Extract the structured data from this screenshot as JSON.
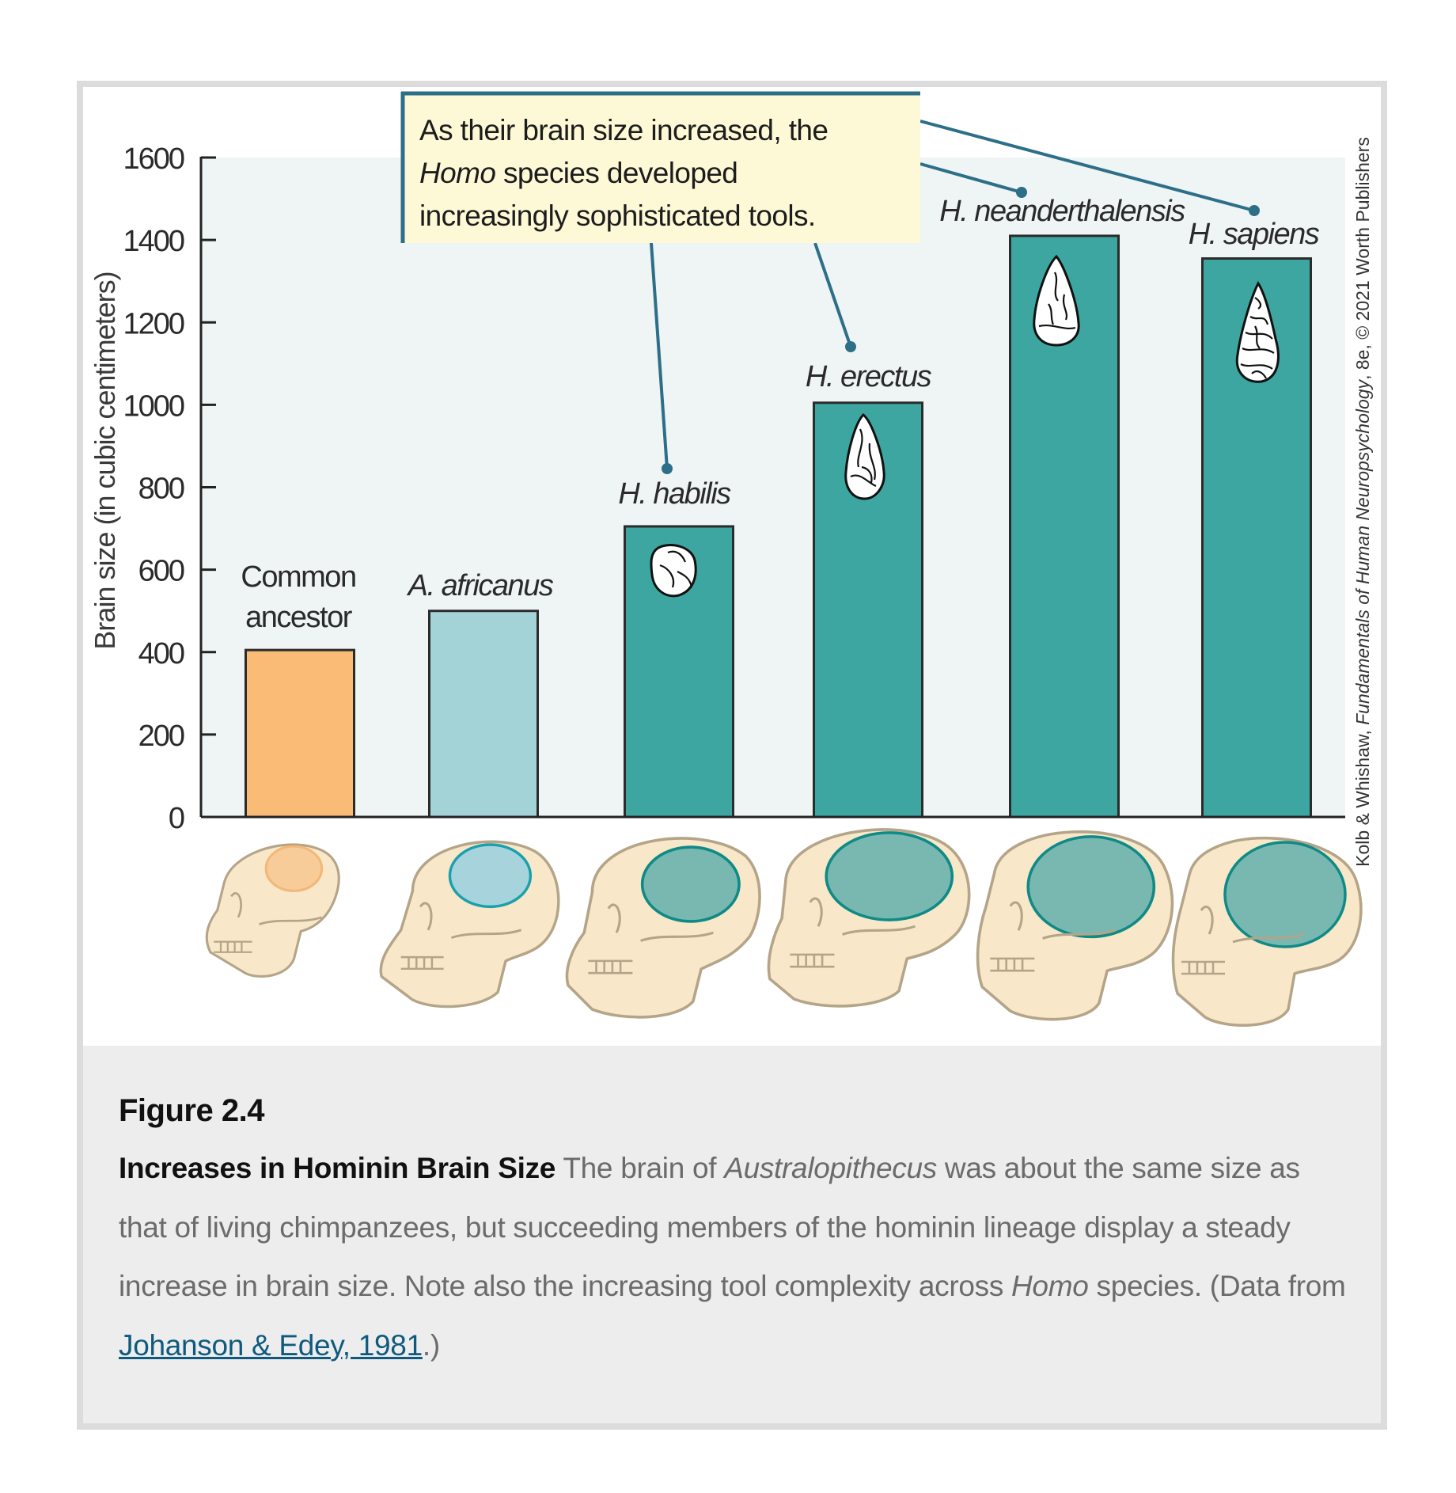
{
  "chart_data": {
    "type": "bar",
    "title": "",
    "xlabel": "",
    "ylabel": "Brain size (in cubic centimeters)",
    "ylim": [
      0,
      1600
    ],
    "yticks": [
      "0",
      "200",
      "400",
      "600",
      "800",
      "1000",
      "1200",
      "1400",
      "1600"
    ],
    "ytick_values": [
      0,
      200,
      400,
      600,
      800,
      1000,
      1200,
      1400,
      1600
    ],
    "grid": false,
    "categories": [
      {
        "lines": [
          "Common",
          "ancestor"
        ],
        "italic": false
      },
      {
        "lines": [
          "A. africanus"
        ],
        "italic": true
      },
      {
        "lines": [
          "H. habilis"
        ],
        "italic": true
      },
      {
        "lines": [
          "H. erectus"
        ],
        "italic": true
      },
      {
        "lines": [
          "H. neanderthalensis"
        ],
        "italic": true
      },
      {
        "lines": [
          "H. sapiens"
        ],
        "italic": true
      }
    ],
    "values": [
      405,
      500,
      705,
      1005,
      1410,
      1355
    ],
    "bar_colors": [
      "#f9bb75",
      "#a4d3d7",
      "#3da6a0",
      "#3da6a0",
      "#3da6a0",
      "#3da6a0"
    ],
    "tool_icons": [
      null,
      null,
      "pebble-tool-icon",
      "hand-axe-tool-icon",
      "flake-point-tool-icon",
      "blade-point-tool-icon"
    ],
    "skull_brain_colors": [
      "#f9c890",
      "#a7d4dc",
      "#78b8b0",
      "#78b8b0",
      "#78b8b0",
      "#78b8b0"
    ],
    "skull_brain_strokes": [
      "#f3b06a",
      "#1aa0ad",
      "#0f8a86",
      "#0f8a86",
      "#0f8a86",
      "#0f8a86"
    ],
    "annotation": {
      "lines": [
        [
          {
            "t": "As their brain size increased, the",
            "i": false
          }
        ],
        [
          {
            "t": "Homo",
            "i": true
          },
          {
            "t": " species developed",
            "i": false
          }
        ],
        [
          {
            "t": "increasingly sophisticated tools.",
            "i": false
          }
        ]
      ],
      "targets": [
        "H. habilis",
        "H. erectus",
        "H. neanderthalensis",
        "H. sapiens"
      ]
    },
    "credit": [
      {
        "t": "Kolb & Whishaw, ",
        "i": false
      },
      {
        "t": "Fundamentals of Human Neuropsychology",
        "i": true
      },
      {
        "t": ", 8e, © 2021 Worth Publishers",
        "i": false
      }
    ]
  },
  "colors": {
    "plot_bg": "#eef5f4",
    "axis": "#222222",
    "leader": "#2d6e88",
    "callout_bg": "#fdf9d6",
    "skull_fill": "#f8e7c9",
    "skull_stroke": "#b4a488",
    "link": "#0e5a7e"
  },
  "caption": {
    "figure_number": "Figure 2.4",
    "title": "Increases in Hominin Brain Size",
    "text_1": " The brain of ",
    "text_1_italic": "Australopithecus",
    "text_2": " was about the same size as that of living chimpanzees, but succeeding members of the hominin lineage display a steady increase in brain size. Note also the increasing tool complexity across ",
    "text_2_italic": "Homo",
    "text_3": " species. (Data from ",
    "link": "Johanson & Edey, 1981",
    "text_4": ".)"
  }
}
